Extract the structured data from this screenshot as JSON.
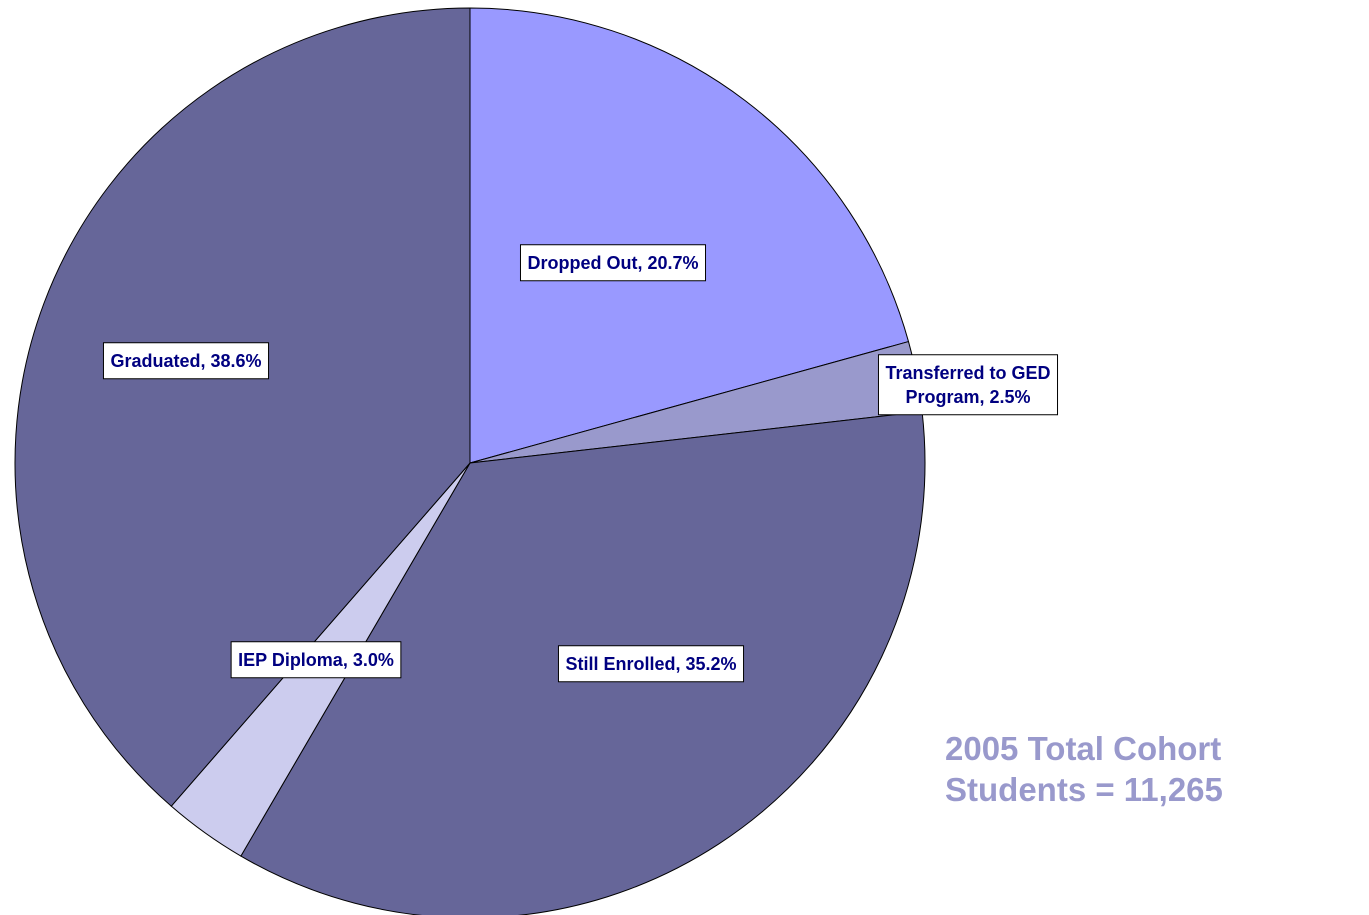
{
  "chart_data": {
    "type": "pie",
    "values": [
      20.7,
      2.5,
      35.2,
      3.0,
      38.6
    ],
    "value_labels": [
      "Dropped Out, 20.7%",
      "Transferred to GED\nProgram, 2.5%",
      "Still Enrolled, 35.2%",
      "IEP Diploma, 3.0%",
      "Graduated, 38.6%"
    ],
    "colors": [
      "#9999ff",
      "#9999cc",
      "#666699",
      "#ccccee",
      "#666699"
    ],
    "annotation": [
      "2005 Total Cohort",
      "Students = 11,265"
    ]
  }
}
